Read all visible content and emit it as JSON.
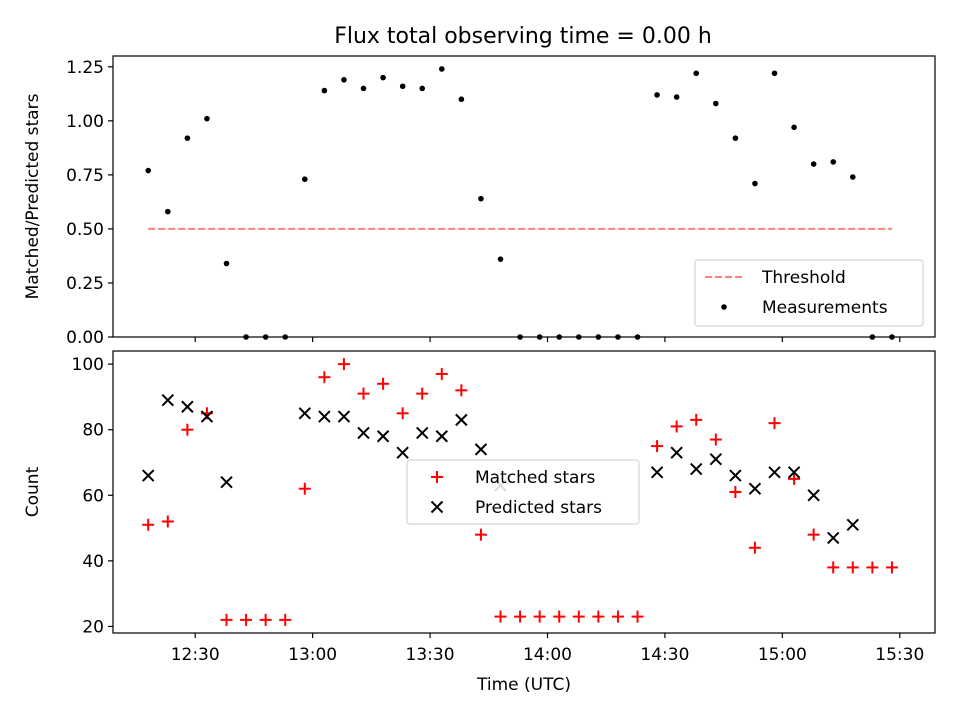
{
  "title": "Flux total observing time = 0.00 h",
  "chart_data": [
    {
      "type": "scatter",
      "ylabel": "Matched/Predicted stars",
      "ylim": [
        0,
        1.3
      ],
      "yticks": [
        0.0,
        0.25,
        0.5,
        0.75,
        1.0,
        1.25
      ],
      "ytick_labels": [
        "0.00",
        "0.25",
        "0.50",
        "0.75",
        "1.00",
        "1.25"
      ],
      "xlim": [
        "12:09",
        "15:39"
      ],
      "xticks": [
        "12:30",
        "13:00",
        "13:30",
        "14:00",
        "14:30",
        "15:00",
        "15:30"
      ],
      "threshold": {
        "name": "Threshold",
        "value": 0.5,
        "x_range": [
          "12:18",
          "15:28"
        ],
        "color": "#ff7f7f"
      },
      "series": [
        {
          "name": "Measurements",
          "color": "#000000",
          "x": [
            "12:18",
            "12:23",
            "12:28",
            "12:33",
            "12:38",
            "12:43",
            "12:48",
            "12:53",
            "12:58",
            "13:03",
            "13:08",
            "13:13",
            "13:18",
            "13:23",
            "13:28",
            "13:33",
            "13:38",
            "13:43",
            "13:48",
            "13:53",
            "13:58",
            "14:03",
            "14:08",
            "14:13",
            "14:18",
            "14:23",
            "14:28",
            "14:33",
            "14:38",
            "14:43",
            "14:48",
            "14:53",
            "14:58",
            "15:03",
            "15:08",
            "15:13",
            "15:18",
            "15:23",
            "15:28"
          ],
          "y": [
            0.77,
            0.58,
            0.92,
            1.01,
            0.34,
            0.0,
            0.0,
            0.0,
            0.73,
            1.14,
            1.19,
            1.15,
            1.2,
            1.16,
            1.15,
            1.24,
            1.1,
            0.64,
            0.36,
            0.0,
            0.0,
            0.0,
            0.0,
            0.0,
            0.0,
            0.0,
            1.12,
            1.11,
            1.22,
            1.08,
            0.92,
            0.71,
            1.22,
            0.97,
            0.8,
            0.81,
            0.74,
            0.0,
            0.0
          ]
        }
      ],
      "legend": {
        "loc": "lower right",
        "entries": [
          "Threshold",
          "Measurements"
        ]
      },
      "grid": false
    },
    {
      "type": "scatter",
      "xlabel": "Time (UTC)",
      "ylabel": "Count",
      "ylim": [
        18,
        104
      ],
      "yticks": [
        20,
        40,
        60,
        80,
        100
      ],
      "xlim": [
        "12:09",
        "15:39"
      ],
      "xticks": [
        "12:30",
        "13:00",
        "13:30",
        "14:00",
        "14:30",
        "15:00",
        "15:30"
      ],
      "series": [
        {
          "name": "Matched stars",
          "marker": "+",
          "color": "#ff0000",
          "x": [
            "12:18",
            "12:23",
            "12:28",
            "12:33",
            "12:38",
            "12:43",
            "12:48",
            "12:53",
            "12:58",
            "13:03",
            "13:08",
            "13:13",
            "13:18",
            "13:23",
            "13:28",
            "13:33",
            "13:38",
            "13:43",
            "13:48",
            "13:53",
            "13:58",
            "14:03",
            "14:08",
            "14:13",
            "14:18",
            "14:23",
            "14:28",
            "14:33",
            "14:38",
            "14:43",
            "14:48",
            "14:53",
            "14:58",
            "15:03",
            "15:08",
            "15:13",
            "15:18",
            "15:23",
            "15:28"
          ],
          "y": [
            51,
            52,
            80,
            85,
            22,
            22,
            22,
            22,
            62,
            96,
            100,
            91,
            94,
            85,
            91,
            97,
            92,
            48,
            23,
            23,
            23,
            23,
            23,
            23,
            23,
            23,
            75,
            81,
            83,
            77,
            61,
            44,
            82,
            65,
            48,
            38,
            38,
            38,
            38
          ]
        },
        {
          "name": "Predicted stars",
          "marker": "x",
          "color": "#000000",
          "x": [
            "12:18",
            "12:23",
            "12:28",
            "12:33",
            "12:38",
            "12:58",
            "13:03",
            "13:08",
            "13:13",
            "13:18",
            "13:23",
            "13:28",
            "13:33",
            "13:38",
            "13:43",
            "13:48",
            "14:28",
            "14:33",
            "14:38",
            "14:43",
            "14:48",
            "14:53",
            "14:58",
            "15:03",
            "15:08",
            "15:13",
            "15:18"
          ],
          "y": [
            66,
            89,
            87,
            84,
            64,
            85,
            84,
            84,
            79,
            78,
            73,
            79,
            78,
            83,
            74,
            63,
            67,
            73,
            68,
            71,
            66,
            62,
            67,
            67,
            60,
            47,
            51
          ]
        }
      ],
      "legend": {
        "loc": "center",
        "entries": [
          "Matched stars",
          "Predicted stars"
        ]
      },
      "grid": false
    }
  ]
}
